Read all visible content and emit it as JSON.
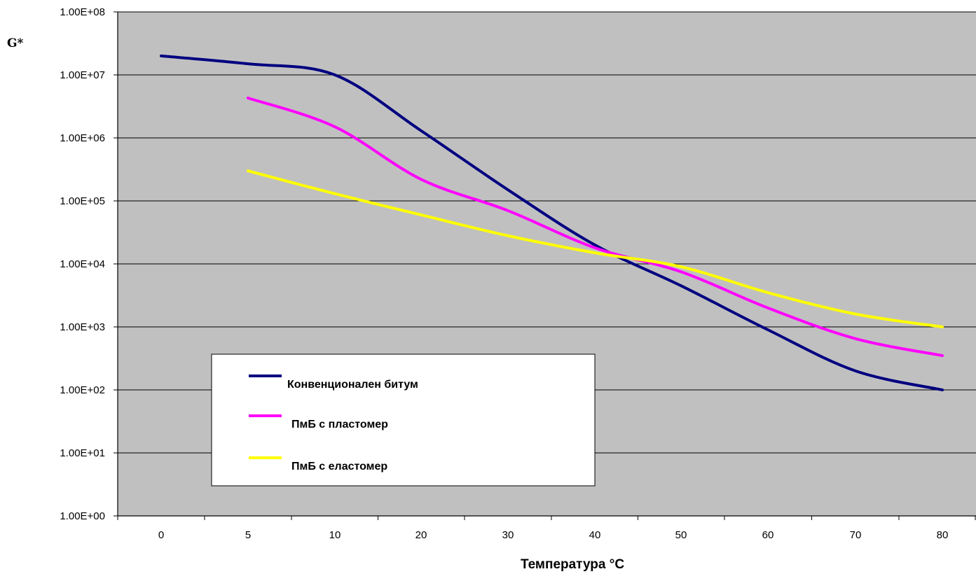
{
  "chart_data": {
    "type": "line",
    "ylabel": "G*",
    "xlabel": "Температура °C",
    "y_scale": "log",
    "ylim": [
      1,
      100000000
    ],
    "xlim": [
      0,
      80
    ],
    "y_ticks": [
      "1.00E+00",
      "1.00E+01",
      "1.00E+02",
      "1.00E+03",
      "1.00E+04",
      "1.00E+05",
      "1.00E+06",
      "1.00E+07",
      "1.00E+08"
    ],
    "x_ticks": [
      "0",
      "5",
      "10",
      "20",
      "30",
      "40",
      "50",
      "60",
      "70",
      "80"
    ],
    "grid": "horizontal",
    "legend_position": "bottom-left",
    "plot_background": "#c0c0c0",
    "series": [
      {
        "name": "Конвенционален битум",
        "color": "#000080",
        "points": [
          [
            0,
            20000000
          ],
          [
            5,
            15000000
          ],
          [
            10,
            10000000
          ],
          [
            20,
            1300000
          ],
          [
            30,
            150000
          ],
          [
            40,
            20000
          ],
          [
            50,
            4500
          ],
          [
            60,
            900
          ],
          [
            70,
            200
          ],
          [
            80,
            100
          ]
        ]
      },
      {
        "name": "ПмБ с пластомер",
        "color": "#ff00ff",
        "points": [
          [
            5,
            4300000
          ],
          [
            10,
            1500000
          ],
          [
            20,
            220000
          ],
          [
            30,
            70000
          ],
          [
            40,
            18000
          ],
          [
            50,
            7500
          ],
          [
            60,
            2000
          ],
          [
            70,
            650
          ],
          [
            80,
            350
          ]
        ]
      },
      {
        "name": "ПмБ с  еластомер",
        "color": "#ffff00",
        "points": [
          [
            5,
            300000
          ],
          [
            10,
            130000
          ],
          [
            20,
            60000
          ],
          [
            30,
            28000
          ],
          [
            40,
            15000
          ],
          [
            50,
            9000
          ],
          [
            60,
            3500
          ],
          [
            70,
            1600
          ],
          [
            80,
            1000
          ]
        ]
      }
    ]
  }
}
